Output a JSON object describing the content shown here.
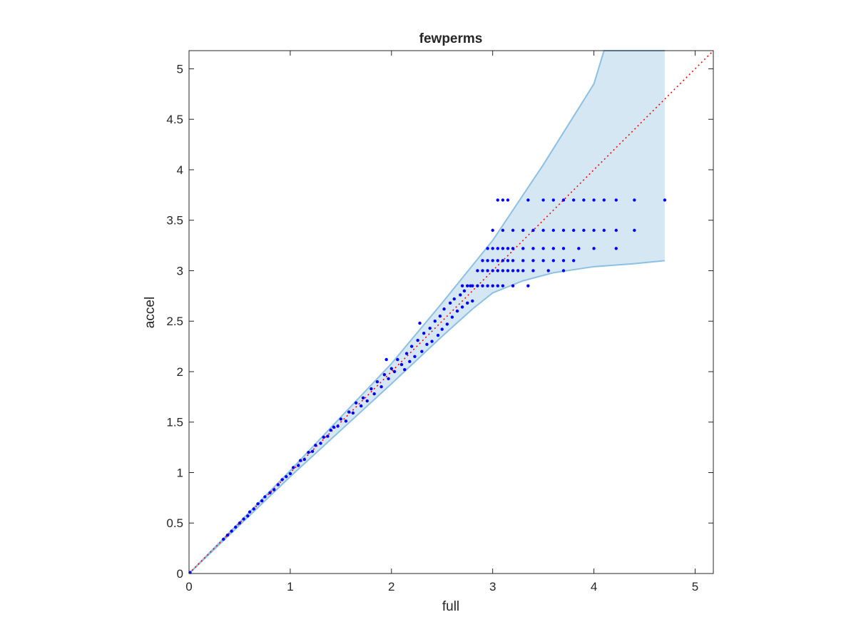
{
  "chart_data": {
    "type": "scatter",
    "title": "fewperms",
    "xlabel": "full",
    "ylabel": "accel",
    "xlim": [
      0,
      5.18
    ],
    "ylim": [
      0,
      5.18
    ],
    "xticks": [
      0,
      1,
      2,
      3,
      4,
      5
    ],
    "yticks": [
      0,
      0.5,
      1,
      1.5,
      2,
      2.5,
      3,
      3.5,
      4,
      4.5,
      5
    ],
    "grid": false,
    "box": true,
    "colors": {
      "points": "#0000ff",
      "band_fill": "#d6e7f4",
      "band_edge": "#8cc0e3",
      "diagonal": "#ff0000",
      "axes": "#262626"
    },
    "reference_line": {
      "style": "dotted",
      "from": [
        0,
        0
      ],
      "to": [
        5.18,
        5.18
      ]
    },
    "band": {
      "upper": [
        [
          0,
          0
        ],
        [
          1,
          1.02
        ],
        [
          2,
          2.08
        ],
        [
          2.5,
          2.68
        ],
        [
          3,
          3.3
        ],
        [
          3.5,
          4.05
        ],
        [
          4,
          4.85
        ],
        [
          4.1,
          5.18
        ],
        [
          4.7,
          5.18
        ]
      ],
      "lower": [
        [
          0,
          0
        ],
        [
          1,
          0.96
        ],
        [
          1.5,
          1.42
        ],
        [
          2,
          1.88
        ],
        [
          2.5,
          2.35
        ],
        [
          2.8,
          2.62
        ],
        [
          3,
          2.78
        ],
        [
          3.3,
          2.9
        ],
        [
          3.6,
          2.98
        ],
        [
          4,
          3.04
        ],
        [
          4.4,
          3.07
        ],
        [
          4.7,
          3.1
        ]
      ]
    },
    "series": [
      {
        "values": [
          [
            0.01,
            0.01
          ],
          [
            0.34,
            0.34
          ],
          [
            0.38,
            0.38
          ],
          [
            0.42,
            0.42
          ],
          [
            0.46,
            0.46
          ],
          [
            0.5,
            0.5
          ],
          [
            0.54,
            0.54
          ],
          [
            0.58,
            0.57
          ],
          [
            0.6,
            0.61
          ],
          [
            0.64,
            0.64
          ],
          [
            0.68,
            0.69
          ],
          [
            0.72,
            0.72
          ],
          [
            0.75,
            0.76
          ],
          [
            0.8,
            0.8
          ],
          [
            0.84,
            0.83
          ],
          [
            0.88,
            0.88
          ],
          [
            0.92,
            0.93
          ],
          [
            0.96,
            0.96
          ],
          [
            1.0,
            0.99
          ],
          [
            1.03,
            1.05
          ],
          [
            1.08,
            1.07
          ],
          [
            1.1,
            1.12
          ],
          [
            1.14,
            1.13
          ],
          [
            1.18,
            1.2
          ],
          [
            1.22,
            1.21
          ],
          [
            1.25,
            1.27
          ],
          [
            1.3,
            1.29
          ],
          [
            1.33,
            1.35
          ],
          [
            1.37,
            1.36
          ],
          [
            1.4,
            1.42
          ],
          [
            1.43,
            1.45
          ],
          [
            1.47,
            1.46
          ],
          [
            1.5,
            1.53
          ],
          [
            1.55,
            1.51
          ],
          [
            1.58,
            1.6
          ],
          [
            1.62,
            1.59
          ],
          [
            1.65,
            1.69
          ],
          [
            1.7,
            1.66
          ],
          [
            1.72,
            1.74
          ],
          [
            1.76,
            1.71
          ],
          [
            1.8,
            1.83
          ],
          [
            1.83,
            1.78
          ],
          [
            1.86,
            1.9
          ],
          [
            1.9,
            1.85
          ],
          [
            1.93,
            1.97
          ],
          [
            1.95,
            2.12
          ],
          [
            1.97,
            1.93
          ],
          [
            2.0,
            2.03
          ],
          [
            2.03,
            2.0
          ],
          [
            2.06,
            2.12
          ],
          [
            2.1,
            2.07
          ],
          [
            2.13,
            2.02
          ],
          [
            2.15,
            2.18
          ],
          [
            2.18,
            2.1
          ],
          [
            2.2,
            2.25
          ],
          [
            2.23,
            2.15
          ],
          [
            2.26,
            2.31
          ],
          [
            2.28,
            2.48
          ],
          [
            2.3,
            2.2
          ],
          [
            2.32,
            2.38
          ],
          [
            2.35,
            2.27
          ],
          [
            2.38,
            2.43
          ],
          [
            2.4,
            2.3
          ],
          [
            2.43,
            2.5
          ],
          [
            2.46,
            2.36
          ],
          [
            2.48,
            2.55
          ],
          [
            2.5,
            2.42
          ],
          [
            2.52,
            2.62
          ],
          [
            2.55,
            2.47
          ],
          [
            2.58,
            2.68
          ],
          [
            2.6,
            2.54
          ],
          [
            2.62,
            2.72
          ],
          [
            2.65,
            2.6
          ],
          [
            2.68,
            2.76
          ],
          [
            2.7,
            2.64
          ],
          [
            2.72,
            2.8
          ],
          [
            2.75,
            2.68
          ],
          [
            2.78,
            2.85
          ],
          [
            2.8,
            2.7
          ],
          [
            2.7,
            2.85
          ],
          [
            2.75,
            2.85
          ],
          [
            2.8,
            2.85
          ],
          [
            2.85,
            2.85
          ],
          [
            2.9,
            2.85
          ],
          [
            2.95,
            2.85
          ],
          [
            3.0,
            2.85
          ],
          [
            3.05,
            2.85
          ],
          [
            3.1,
            2.85
          ],
          [
            3.2,
            2.85
          ],
          [
            3.35,
            2.85
          ],
          [
            2.85,
            3.0
          ],
          [
            2.9,
            3.0
          ],
          [
            2.95,
            3.0
          ],
          [
            3.0,
            3.0
          ],
          [
            3.05,
            3.0
          ],
          [
            3.1,
            3.0
          ],
          [
            3.15,
            3.0
          ],
          [
            3.2,
            3.0
          ],
          [
            3.25,
            3.0
          ],
          [
            3.3,
            3.0
          ],
          [
            3.4,
            3.0
          ],
          [
            3.55,
            3.0
          ],
          [
            3.7,
            3.0
          ],
          [
            2.9,
            3.1
          ],
          [
            2.95,
            3.1
          ],
          [
            3.0,
            3.1
          ],
          [
            3.05,
            3.1
          ],
          [
            3.1,
            3.1
          ],
          [
            3.15,
            3.1
          ],
          [
            3.2,
            3.1
          ],
          [
            3.3,
            3.1
          ],
          [
            3.4,
            3.1
          ],
          [
            3.5,
            3.1
          ],
          [
            3.6,
            3.1
          ],
          [
            3.7,
            3.1
          ],
          [
            3.8,
            3.1
          ],
          [
            2.95,
            3.22
          ],
          [
            3.0,
            3.22
          ],
          [
            3.05,
            3.22
          ],
          [
            3.1,
            3.22
          ],
          [
            3.15,
            3.22
          ],
          [
            3.2,
            3.22
          ],
          [
            3.3,
            3.22
          ],
          [
            3.4,
            3.22
          ],
          [
            3.5,
            3.22
          ],
          [
            3.6,
            3.22
          ],
          [
            3.7,
            3.22
          ],
          [
            3.85,
            3.22
          ],
          [
            4.0,
            3.22
          ],
          [
            4.22,
            3.22
          ],
          [
            3.0,
            3.4
          ],
          [
            3.1,
            3.4
          ],
          [
            3.2,
            3.4
          ],
          [
            3.3,
            3.4
          ],
          [
            3.4,
            3.4
          ],
          [
            3.5,
            3.4
          ],
          [
            3.6,
            3.4
          ],
          [
            3.7,
            3.4
          ],
          [
            3.8,
            3.4
          ],
          [
            3.9,
            3.4
          ],
          [
            4.0,
            3.4
          ],
          [
            4.1,
            3.4
          ],
          [
            4.22,
            3.4
          ],
          [
            4.4,
            3.4
          ],
          [
            3.05,
            3.7
          ],
          [
            3.1,
            3.7
          ],
          [
            3.15,
            3.7
          ],
          [
            3.35,
            3.7
          ],
          [
            3.5,
            3.7
          ],
          [
            3.6,
            3.7
          ],
          [
            3.7,
            3.7
          ],
          [
            3.8,
            3.7
          ],
          [
            3.9,
            3.7
          ],
          [
            4.0,
            3.7
          ],
          [
            4.1,
            3.7
          ],
          [
            4.22,
            3.7
          ],
          [
            4.4,
            3.7
          ],
          [
            4.7,
            3.7
          ]
        ]
      }
    ]
  }
}
